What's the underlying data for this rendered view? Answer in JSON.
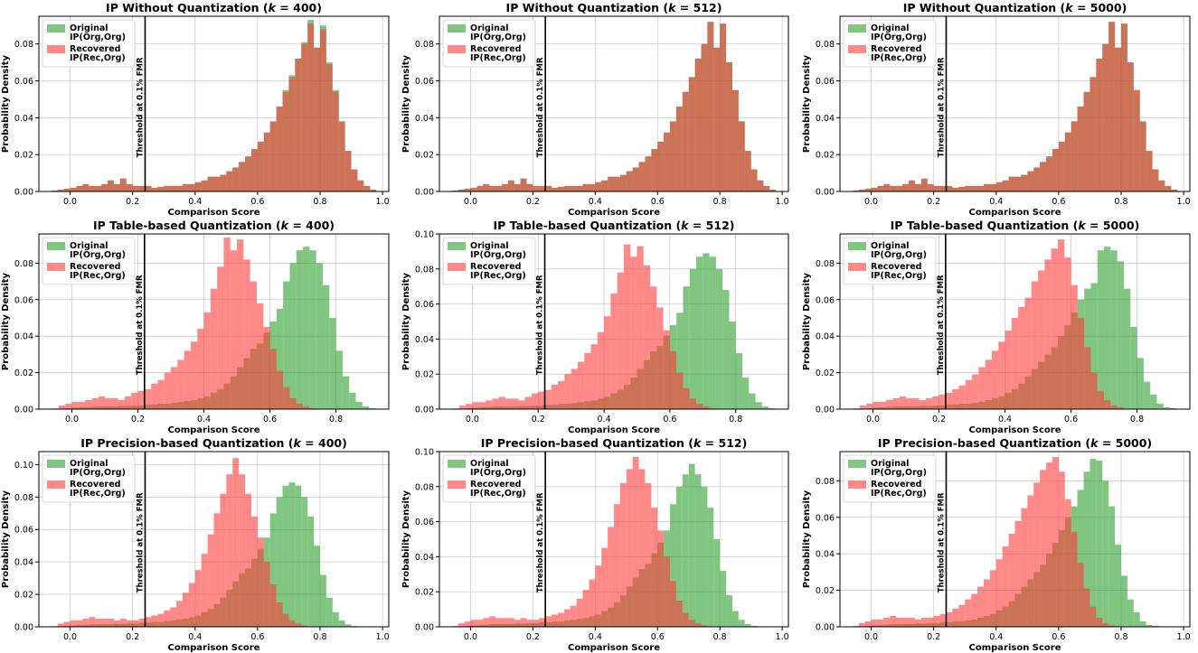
{
  "colors": {
    "original": "#2ca02c",
    "recovered": "#ff3b3b",
    "threshold": "#000000",
    "grid": "#cccccc"
  },
  "legend": {
    "original": [
      "Original",
      "IP(Org,Org)"
    ],
    "recovered": [
      "Recovered",
      "IP(Rec,Org)"
    ]
  },
  "threshold_label": "Threshold at 0.1% FMR",
  "xlabel": "Comparison Score",
  "ylabel": "Probability Density",
  "chart_data": [
    {
      "type": "histogram",
      "title_prefix": "IP Without Quantization (",
      "title_k": "k",
      "title_suffix": " = 400)",
      "xlim": [
        -0.1,
        1.02
      ],
      "ylim": [
        0,
        0.095
      ],
      "xticks": [
        "0.0",
        "0.2",
        "0.4",
        "0.6",
        "0.8",
        "1.0"
      ],
      "yticks": [
        "0.00",
        "0.02",
        "0.04",
        "0.06",
        "0.08"
      ],
      "threshold": 0.24,
      "hist_range": [
        -0.06,
        0.98
      ],
      "bins": 52,
      "original": [
        0.0005,
        0.001,
        0.0015,
        0.002,
        0.003,
        0.004,
        0.003,
        0.003,
        0.004,
        0.006,
        0.004,
        0.007,
        0.004,
        0.003,
        0.003,
        0.003,
        0.002,
        0.0025,
        0.003,
        0.003,
        0.003,
        0.004,
        0.004,
        0.005,
        0.006,
        0.008,
        0.008,
        0.009,
        0.011,
        0.013,
        0.016,
        0.019,
        0.023,
        0.027,
        0.032,
        0.038,
        0.046,
        0.055,
        0.063,
        0.072,
        0.081,
        0.093,
        0.078,
        0.09,
        0.07,
        0.055,
        0.038,
        0.022,
        0.012,
        0.006,
        0.003,
        0.001
      ],
      "recovered": [
        0.0005,
        0.001,
        0.0015,
        0.002,
        0.003,
        0.004,
        0.003,
        0.003,
        0.004,
        0.006,
        0.004,
        0.007,
        0.004,
        0.003,
        0.003,
        0.003,
        0.002,
        0.0025,
        0.003,
        0.003,
        0.003,
        0.004,
        0.004,
        0.005,
        0.006,
        0.008,
        0.008,
        0.009,
        0.011,
        0.013,
        0.016,
        0.019,
        0.023,
        0.027,
        0.032,
        0.038,
        0.046,
        0.054,
        0.062,
        0.072,
        0.08,
        0.091,
        0.078,
        0.088,
        0.069,
        0.054,
        0.038,
        0.022,
        0.012,
        0.006,
        0.003,
        0.001
      ]
    },
    {
      "type": "histogram",
      "title_prefix": "IP Without Quantization (",
      "title_k": "k",
      "title_suffix": " = 512)",
      "xlim": [
        -0.1,
        1.02
      ],
      "ylim": [
        0,
        0.095
      ],
      "xticks": [
        "0.0",
        "0.2",
        "0.4",
        "0.6",
        "0.8",
        "1.0"
      ],
      "yticks": [
        "0.00",
        "0.02",
        "0.04",
        "0.06",
        "0.08"
      ],
      "threshold": 0.24,
      "hist_range": [
        -0.06,
        0.98
      ],
      "bins": 52,
      "original": [
        0.0005,
        0.001,
        0.0015,
        0.002,
        0.003,
        0.004,
        0.003,
        0.003,
        0.004,
        0.006,
        0.004,
        0.007,
        0.004,
        0.003,
        0.003,
        0.003,
        0.002,
        0.0025,
        0.003,
        0.003,
        0.003,
        0.004,
        0.004,
        0.005,
        0.006,
        0.008,
        0.008,
        0.009,
        0.011,
        0.013,
        0.016,
        0.019,
        0.023,
        0.027,
        0.032,
        0.038,
        0.046,
        0.054,
        0.062,
        0.072,
        0.08,
        0.092,
        0.078,
        0.091,
        0.07,
        0.055,
        0.038,
        0.022,
        0.012,
        0.006,
        0.003,
        0.001
      ],
      "recovered": [
        0.0005,
        0.001,
        0.0015,
        0.002,
        0.003,
        0.004,
        0.003,
        0.003,
        0.004,
        0.006,
        0.004,
        0.007,
        0.004,
        0.003,
        0.003,
        0.003,
        0.002,
        0.0025,
        0.003,
        0.003,
        0.003,
        0.004,
        0.004,
        0.005,
        0.006,
        0.008,
        0.008,
        0.009,
        0.011,
        0.013,
        0.016,
        0.019,
        0.023,
        0.027,
        0.032,
        0.038,
        0.046,
        0.054,
        0.062,
        0.072,
        0.08,
        0.092,
        0.078,
        0.091,
        0.07,
        0.055,
        0.038,
        0.022,
        0.012,
        0.006,
        0.003,
        0.001
      ]
    },
    {
      "type": "histogram",
      "title_prefix": "IP Without Quantization (",
      "title_k": "k",
      "title_suffix": " = 5000)",
      "xlim": [
        -0.1,
        1.02
      ],
      "ylim": [
        0,
        0.095
      ],
      "xticks": [
        "0.0",
        "0.2",
        "0.4",
        "0.6",
        "0.8",
        "1.0"
      ],
      "yticks": [
        "0.00",
        "0.02",
        "0.04",
        "0.06",
        "0.08"
      ],
      "threshold": 0.24,
      "hist_range": [
        -0.06,
        0.98
      ],
      "bins": 52,
      "original": [
        0.0005,
        0.001,
        0.0015,
        0.002,
        0.003,
        0.004,
        0.003,
        0.003,
        0.004,
        0.006,
        0.004,
        0.007,
        0.004,
        0.003,
        0.003,
        0.003,
        0.002,
        0.0025,
        0.003,
        0.003,
        0.003,
        0.004,
        0.004,
        0.005,
        0.006,
        0.008,
        0.008,
        0.009,
        0.011,
        0.013,
        0.016,
        0.019,
        0.023,
        0.027,
        0.032,
        0.038,
        0.046,
        0.054,
        0.062,
        0.072,
        0.08,
        0.092,
        0.078,
        0.091,
        0.07,
        0.055,
        0.038,
        0.022,
        0.012,
        0.006,
        0.003,
        0.001
      ],
      "recovered": [
        0.0005,
        0.001,
        0.0015,
        0.002,
        0.003,
        0.004,
        0.003,
        0.003,
        0.004,
        0.006,
        0.004,
        0.007,
        0.004,
        0.003,
        0.003,
        0.003,
        0.002,
        0.0025,
        0.003,
        0.003,
        0.003,
        0.004,
        0.004,
        0.005,
        0.006,
        0.008,
        0.008,
        0.009,
        0.011,
        0.013,
        0.016,
        0.019,
        0.023,
        0.027,
        0.032,
        0.038,
        0.046,
        0.054,
        0.062,
        0.072,
        0.08,
        0.092,
        0.078,
        0.091,
        0.07,
        0.055,
        0.038,
        0.022,
        0.012,
        0.006,
        0.003,
        0.001
      ]
    },
    {
      "type": "histogram",
      "title_prefix": "IP Table-based Quantization (",
      "title_k": "k",
      "title_suffix": " = 400)",
      "xlim": [
        -0.1,
        0.96
      ],
      "ylim": [
        0,
        0.096
      ],
      "xticks": [
        "0.0",
        "0.2",
        "0.4",
        "0.6",
        "0.8"
      ],
      "yticks": [
        "0.00",
        "0.02",
        "0.04",
        "0.06",
        "0.08"
      ],
      "threshold": 0.22,
      "hist_range": [
        -0.06,
        0.92
      ],
      "bins": 49,
      "original": [
        0.0002,
        0.0003,
        0.0005,
        0.0008,
        0.001,
        0.0012,
        0.0015,
        0.0015,
        0.0015,
        0.0015,
        0.0018,
        0.0018,
        0.002,
        0.002,
        0.0025,
        0.0025,
        0.003,
        0.003,
        0.0035,
        0.004,
        0.0045,
        0.005,
        0.006,
        0.007,
        0.009,
        0.011,
        0.014,
        0.018,
        0.023,
        0.028,
        0.033,
        0.036,
        0.042,
        0.048,
        0.055,
        0.07,
        0.08,
        0.087,
        0.089,
        0.087,
        0.08,
        0.068,
        0.05,
        0.032,
        0.018,
        0.009,
        0.004,
        0.0015,
        0.0005
      ],
      "recovered": [
        0.0004,
        0.002,
        0.003,
        0.004,
        0.004,
        0.005,
        0.006,
        0.007,
        0.006,
        0.006,
        0.005,
        0.007,
        0.009,
        0.01,
        0.011,
        0.014,
        0.016,
        0.02,
        0.023,
        0.027,
        0.032,
        0.037,
        0.044,
        0.053,
        0.066,
        0.078,
        0.094,
        0.087,
        0.093,
        0.082,
        0.07,
        0.058,
        0.045,
        0.033,
        0.021,
        0.012,
        0.006,
        0.003,
        0.0015,
        0.0005,
        0,
        0,
        0,
        0,
        0,
        0,
        0,
        0,
        0
      ]
    },
    {
      "type": "histogram",
      "title_prefix": "IP Table-based Quantization (",
      "title_k": "k",
      "title_suffix": " = 512)",
      "xlim": [
        -0.1,
        0.96
      ],
      "ylim": [
        0,
        0.1
      ],
      "xticks": [
        "0.0",
        "0.2",
        "0.4",
        "0.6",
        "0.8"
      ],
      "yticks": [
        "0.00",
        "0.02",
        "0.04",
        "0.06",
        "0.08",
        "0.10"
      ],
      "threshold": 0.22,
      "hist_range": [
        -0.06,
        0.92
      ],
      "bins": 49,
      "original": [
        0.0002,
        0.0003,
        0.0005,
        0.0008,
        0.001,
        0.0012,
        0.0015,
        0.0015,
        0.0015,
        0.0015,
        0.0018,
        0.0018,
        0.002,
        0.002,
        0.0025,
        0.0025,
        0.003,
        0.003,
        0.0035,
        0.004,
        0.0045,
        0.005,
        0.006,
        0.007,
        0.009,
        0.011,
        0.014,
        0.018,
        0.023,
        0.028,
        0.033,
        0.036,
        0.042,
        0.048,
        0.055,
        0.07,
        0.08,
        0.087,
        0.089,
        0.087,
        0.08,
        0.068,
        0.05,
        0.032,
        0.018,
        0.009,
        0.004,
        0.0015,
        0.0005
      ],
      "recovered": [
        0.0004,
        0.002,
        0.003,
        0.004,
        0.004,
        0.005,
        0.006,
        0.007,
        0.006,
        0.006,
        0.005,
        0.007,
        0.009,
        0.01,
        0.011,
        0.014,
        0.016,
        0.02,
        0.023,
        0.027,
        0.032,
        0.037,
        0.044,
        0.053,
        0.066,
        0.078,
        0.094,
        0.087,
        0.093,
        0.082,
        0.07,
        0.058,
        0.045,
        0.033,
        0.021,
        0.012,
        0.006,
        0.003,
        0.0015,
        0.0005,
        0,
        0,
        0,
        0,
        0,
        0,
        0,
        0,
        0
      ]
    },
    {
      "type": "histogram",
      "title_prefix": "IP Table-based Quantization (",
      "title_k": "k",
      "title_suffix": " = 5000)",
      "xlim": [
        -0.1,
        0.96
      ],
      "ylim": [
        0,
        0.096
      ],
      "xticks": [
        "0.0",
        "0.2",
        "0.4",
        "0.6",
        "0.8"
      ],
      "yticks": [
        "0.00",
        "0.02",
        "0.04",
        "0.06",
        "0.08"
      ],
      "threshold": 0.22,
      "hist_range": [
        -0.06,
        0.92
      ],
      "bins": 49,
      "original": [
        0.0002,
        0.0003,
        0.0005,
        0.0008,
        0.001,
        0.0012,
        0.0015,
        0.0015,
        0.0015,
        0.0015,
        0.0018,
        0.0018,
        0.002,
        0.002,
        0.0025,
        0.0025,
        0.003,
        0.003,
        0.0035,
        0.004,
        0.005,
        0.006,
        0.007,
        0.009,
        0.011,
        0.014,
        0.018,
        0.022,
        0.026,
        0.03,
        0.034,
        0.04,
        0.046,
        0.053,
        0.06,
        0.066,
        0.069,
        0.087,
        0.089,
        0.087,
        0.081,
        0.066,
        0.045,
        0.028,
        0.015,
        0.008,
        0.003,
        0.001,
        0.0005
      ],
      "recovered": [
        0.0004,
        0.002,
        0.003,
        0.004,
        0.004,
        0.005,
        0.006,
        0.007,
        0.006,
        0.006,
        0.005,
        0.006,
        0.007,
        0.008,
        0.009,
        0.011,
        0.013,
        0.016,
        0.019,
        0.023,
        0.027,
        0.032,
        0.037,
        0.043,
        0.05,
        0.056,
        0.061,
        0.07,
        0.076,
        0.082,
        0.088,
        0.093,
        0.083,
        0.068,
        0.05,
        0.034,
        0.02,
        0.01,
        0.005,
        0.002,
        0.001,
        0,
        0,
        0,
        0,
        0,
        0,
        0,
        0
      ]
    },
    {
      "type": "histogram",
      "title_prefix": "IP Precision-based Quantization (",
      "title_k": "k",
      "title_suffix": " = 400)",
      "xlim": [
        -0.1,
        1.02
      ],
      "ylim": [
        0,
        0.108
      ],
      "xticks": [
        "0.0",
        "0.2",
        "0.4",
        "0.6",
        "0.8",
        "1.0"
      ],
      "yticks": [
        "0.00",
        "0.02",
        "0.04",
        "0.06",
        "0.08",
        "0.10"
      ],
      "threshold": 0.24,
      "hist_range": [
        -0.06,
        0.98
      ],
      "bins": 52,
      "original": [
        0.0002,
        0.0003,
        0.0005,
        0.0008,
        0.001,
        0.0012,
        0.0015,
        0.0015,
        0.0015,
        0.0015,
        0.0018,
        0.0018,
        0.002,
        0.002,
        0.0025,
        0.0025,
        0.003,
        0.003,
        0.0035,
        0.004,
        0.0045,
        0.005,
        0.006,
        0.007,
        0.009,
        0.011,
        0.014,
        0.018,
        0.023,
        0.028,
        0.033,
        0.036,
        0.042,
        0.048,
        0.055,
        0.07,
        0.08,
        0.087,
        0.089,
        0.087,
        0.08,
        0.068,
        0.05,
        0.032,
        0.018,
        0.009,
        0.004,
        0.0015,
        0.0005,
        0.0003,
        0.0001,
        0
      ],
      "recovered": [
        0.0004,
        0.002,
        0.003,
        0.004,
        0.004,
        0.005,
        0.006,
        0.005,
        0.005,
        0.005,
        0.004,
        0.005,
        0.004,
        0.004,
        0.005,
        0.006,
        0.007,
        0.008,
        0.01,
        0.012,
        0.016,
        0.021,
        0.027,
        0.035,
        0.045,
        0.057,
        0.07,
        0.082,
        0.094,
        0.104,
        0.094,
        0.082,
        0.068,
        0.055,
        0.04,
        0.026,
        0.015,
        0.008,
        0.004,
        0.002,
        0.0008,
        0.0003,
        0,
        0,
        0,
        0,
        0,
        0,
        0,
        0,
        0,
        0
      ]
    },
    {
      "type": "histogram",
      "title_prefix": "IP Precision-based Quantization (",
      "title_k": "k",
      "title_suffix": " = 512)",
      "xlim": [
        -0.1,
        1.02
      ],
      "ylim": [
        0,
        0.1
      ],
      "xticks": [
        "0.0",
        "0.2",
        "0.4",
        "0.6",
        "0.8",
        "1.0"
      ],
      "yticks": [
        "0.00",
        "0.02",
        "0.04",
        "0.06",
        "0.08",
        "0.10"
      ],
      "threshold": 0.24,
      "hist_range": [
        -0.06,
        0.98
      ],
      "bins": 52,
      "original": [
        0.0002,
        0.0003,
        0.0005,
        0.0008,
        0.001,
        0.0012,
        0.0015,
        0.0015,
        0.0015,
        0.0015,
        0.0018,
        0.0018,
        0.002,
        0.002,
        0.0025,
        0.0025,
        0.003,
        0.003,
        0.0035,
        0.004,
        0.0045,
        0.005,
        0.006,
        0.007,
        0.009,
        0.011,
        0.014,
        0.018,
        0.023,
        0.028,
        0.033,
        0.036,
        0.042,
        0.048,
        0.055,
        0.07,
        0.08,
        0.087,
        0.093,
        0.087,
        0.08,
        0.068,
        0.05,
        0.032,
        0.018,
        0.009,
        0.004,
        0.0015,
        0.0005,
        0.0003,
        0.0001,
        0
      ],
      "recovered": [
        0.0004,
        0.002,
        0.003,
        0.004,
        0.004,
        0.005,
        0.006,
        0.005,
        0.005,
        0.005,
        0.004,
        0.005,
        0.004,
        0.004,
        0.005,
        0.006,
        0.007,
        0.008,
        0.01,
        0.012,
        0.016,
        0.021,
        0.027,
        0.035,
        0.045,
        0.057,
        0.07,
        0.082,
        0.09,
        0.097,
        0.09,
        0.082,
        0.068,
        0.055,
        0.04,
        0.026,
        0.015,
        0.008,
        0.004,
        0.002,
        0.0008,
        0.0003,
        0,
        0,
        0,
        0,
        0,
        0,
        0,
        0,
        0,
        0
      ]
    },
    {
      "type": "histogram",
      "title_prefix": "IP Precision-based Quantization (",
      "title_k": "k",
      "title_suffix": " = 5000)",
      "xlim": [
        -0.1,
        1.02
      ],
      "ylim": [
        0,
        0.096
      ],
      "xticks": [
        "0.0",
        "0.2",
        "0.4",
        "0.6",
        "0.8",
        "1.0"
      ],
      "yticks": [
        "0.00",
        "0.02",
        "0.04",
        "0.06",
        "0.08"
      ],
      "threshold": 0.24,
      "hist_range": [
        -0.06,
        0.98
      ],
      "bins": 52,
      "original": [
        0.0002,
        0.0003,
        0.0005,
        0.0008,
        0.001,
        0.0012,
        0.0015,
        0.0015,
        0.0015,
        0.0015,
        0.0018,
        0.0018,
        0.002,
        0.002,
        0.0025,
        0.0025,
        0.003,
        0.003,
        0.0035,
        0.004,
        0.005,
        0.006,
        0.007,
        0.009,
        0.011,
        0.014,
        0.018,
        0.022,
        0.026,
        0.03,
        0.034,
        0.04,
        0.046,
        0.053,
        0.06,
        0.066,
        0.075,
        0.085,
        0.092,
        0.091,
        0.08,
        0.066,
        0.045,
        0.028,
        0.015,
        0.008,
        0.003,
        0.001,
        0.0005,
        0.0003,
        0.0001,
        0
      ],
      "recovered": [
        0.0004,
        0.002,
        0.003,
        0.004,
        0.004,
        0.005,
        0.006,
        0.005,
        0.005,
        0.005,
        0.004,
        0.005,
        0.005,
        0.006,
        0.007,
        0.008,
        0.01,
        0.012,
        0.015,
        0.018,
        0.022,
        0.026,
        0.031,
        0.037,
        0.044,
        0.051,
        0.058,
        0.065,
        0.072,
        0.079,
        0.086,
        0.09,
        0.093,
        0.085,
        0.07,
        0.052,
        0.035,
        0.021,
        0.011,
        0.005,
        0.002,
        0.0008,
        0.0003,
        0,
        0,
        0,
        0,
        0,
        0,
        0,
        0,
        0
      ]
    }
  ]
}
